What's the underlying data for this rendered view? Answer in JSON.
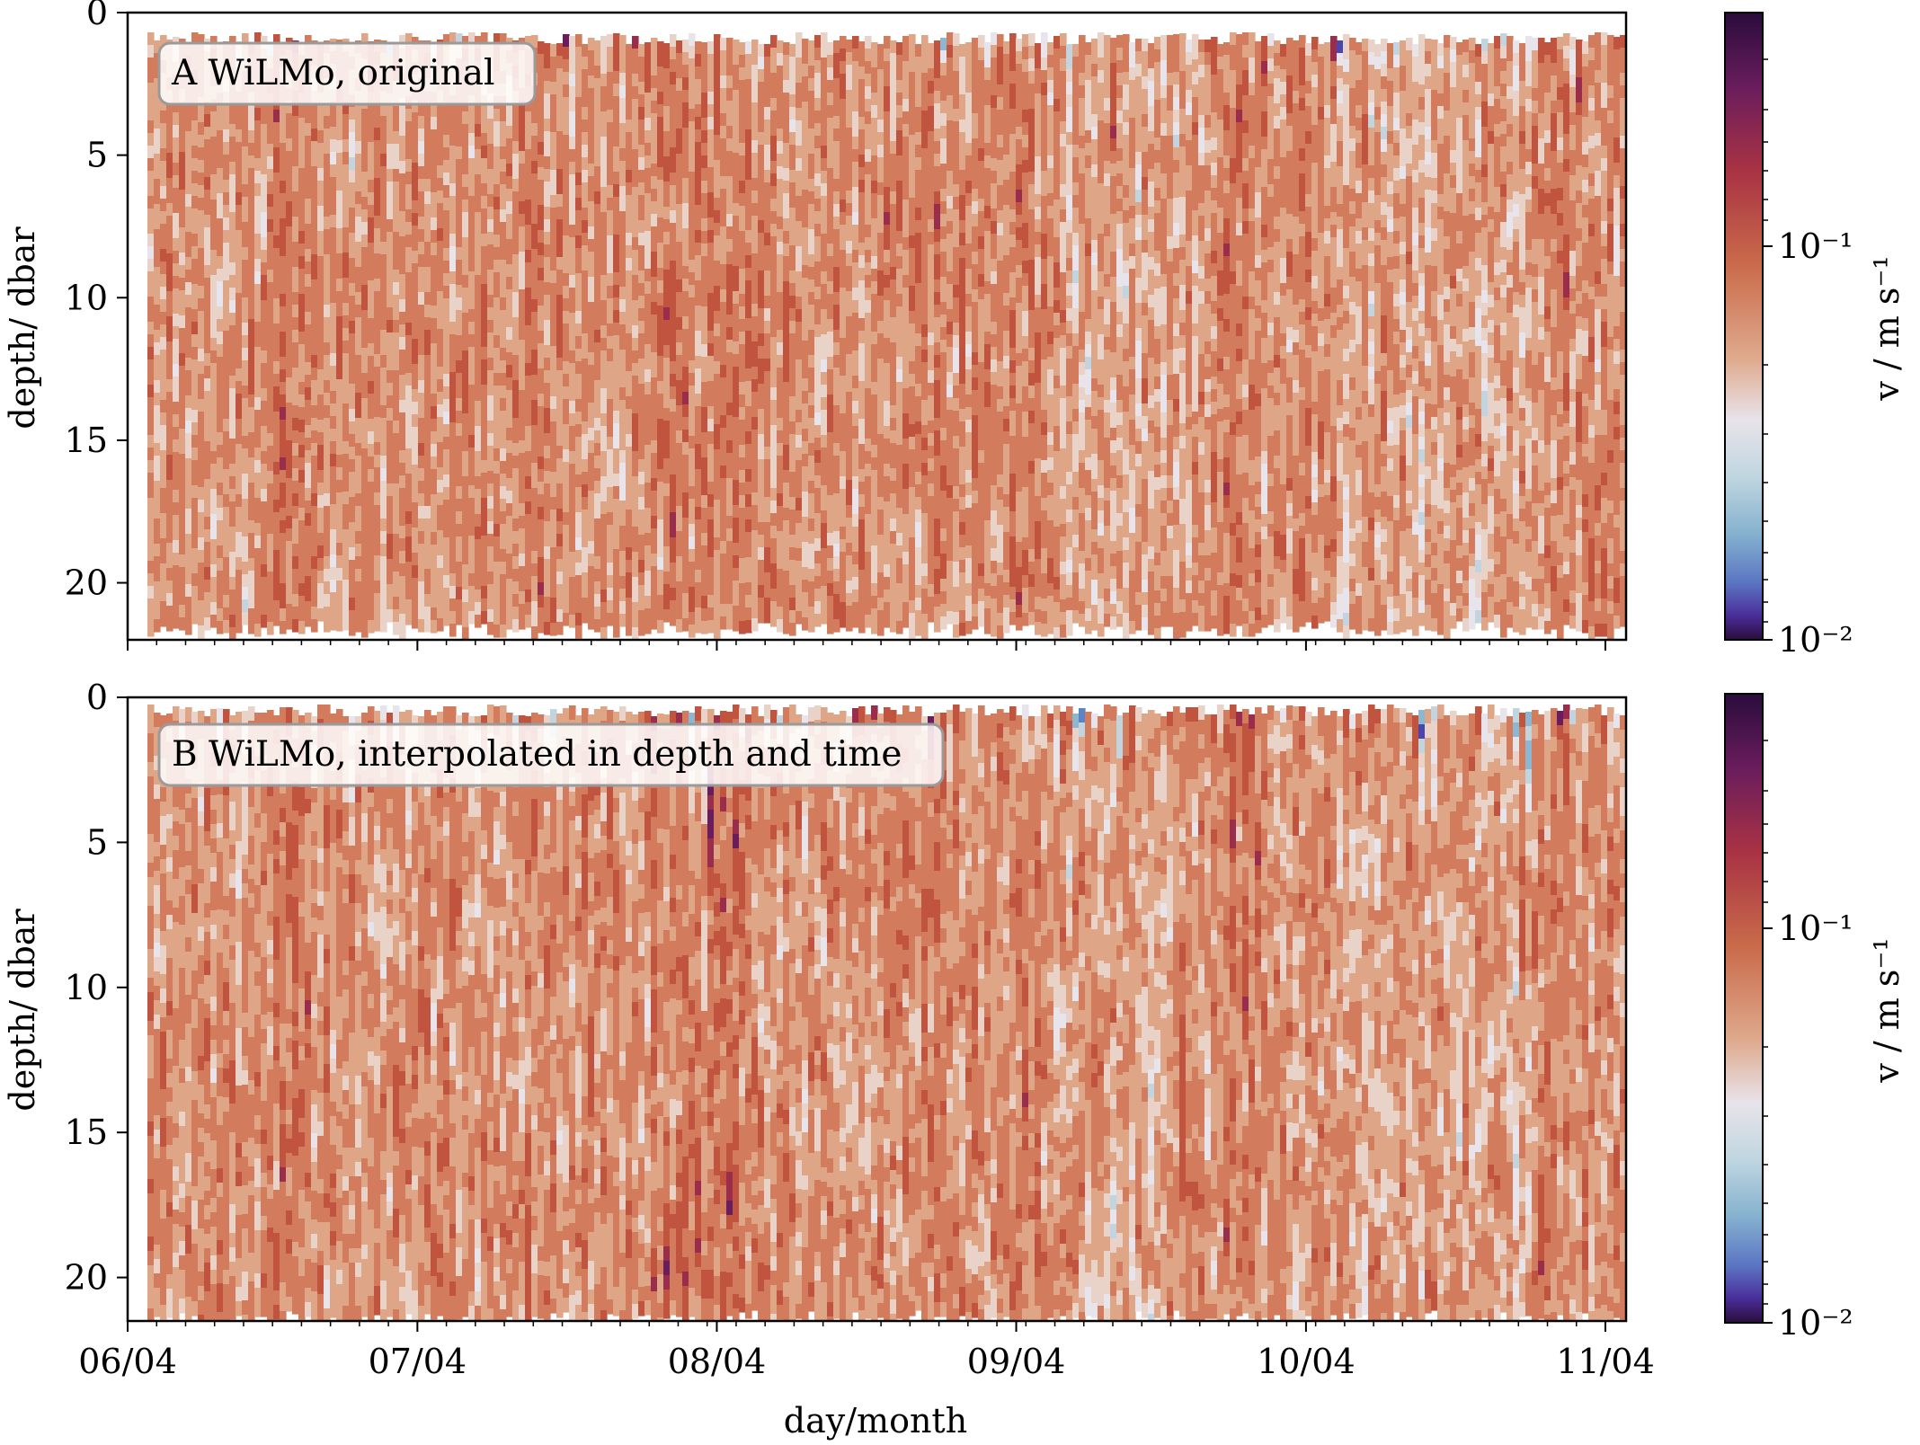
{
  "chart_data": [
    {
      "type": "heatmap",
      "panel_label": "A WiLMo, original",
      "ylabel": "depth/ dbar",
      "y_ticks": [
        "0",
        "5",
        "10",
        "15",
        "20"
      ],
      "y_tick_values": [
        0,
        5,
        10,
        15,
        20
      ],
      "ylim": [
        22,
        0
      ],
      "x_tick_labels": [],
      "xlabel": "",
      "colorbar": {
        "label": "v / m s⁻¹",
        "scale": "log",
        "tick_labels": [
          "10⁻¹",
          "10⁻²"
        ],
        "tick_values": [
          0.1,
          0.01
        ],
        "range": [
          0.01,
          0.35
        ]
      }
    },
    {
      "type": "heatmap",
      "panel_label": "B WiLMo, interpolated in depth and time",
      "ylabel": "depth/ dbar",
      "y_ticks": [
        "0",
        "5",
        "10",
        "15",
        "20"
      ],
      "y_tick_values": [
        0,
        5,
        10,
        15,
        20
      ],
      "ylim": [
        21.5,
        0
      ],
      "x_tick_labels": [
        "06/04",
        "07/04",
        "08/04",
        "09/04",
        "10/04",
        "11/04"
      ],
      "xlabel": "day/month",
      "colorbar": {
        "label": "v / m s⁻¹",
        "scale": "log",
        "tick_labels": [
          "10⁻¹",
          "10⁻²"
        ],
        "tick_values": [
          0.1,
          0.01
        ],
        "range": [
          0.01,
          0.35
        ]
      }
    }
  ],
  "colormap": [
    "#2a0c3c",
    "#6a1d5c",
    "#9b2d4c",
    "#c0543f",
    "#d27b5d",
    "#dea587",
    "#e9d3c9",
    "#e8e4ec",
    "#c2d5df",
    "#8db6d0",
    "#5a84c4",
    "#4b46ad",
    "#2c1660"
  ]
}
